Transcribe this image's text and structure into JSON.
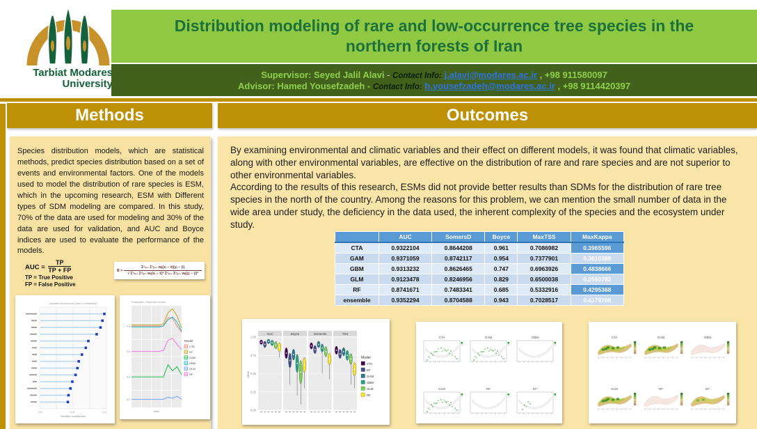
{
  "header": {
    "university": {
      "name_line1": "Tarbiat Modares",
      "name_line2": "University"
    },
    "title": "Distribution modeling of rare and low-occurrence tree species in the northern forests of Iran",
    "supervisor": {
      "name": "Supervisor: Seyed Jalil Alavi",
      "sep": "-",
      "contact_label": "Contact Info:",
      "email": "j.alavi@modares.ac.ir",
      "phone": ",  +98 911580097"
    },
    "advisor": {
      "name": "Advisor: Hamed Yousefzadeh -",
      "contact_label": "Contact Info:",
      "email": "h.yousefzadeh@modares.ac.ir",
      "phone": ",  +98 9114420397"
    }
  },
  "methods": {
    "heading": "Methods",
    "body": "Species distribution models, which are statistical methods, predict species distribution based on a set of events and environmental factors. One of the models used to model the distribution of rare species is ESM, which in the upcoming research, ESM with Different types of SDM modeling are compared. In this study, 70% of the data are used for modeling and 30% of the data are used for validation, and AUC and Boyce indices are used to evaluate the performance of the models.",
    "formulas": {
      "auc_lhs": "AUC =",
      "auc_num": "TP",
      "auc_den": "TP + FP",
      "tp_legend": "TP = True Positive",
      "fp_legend": "FP = False Positive",
      "boyce_lhs": "B =",
      "boyce_num": "Σⁿᵢ₌₁ Σⁿⱼ₌₁ wᵢⱼ(xᵢ − x̄)(yⱼ − ȳ)",
      "boyce_den": "√ Σⁿᵢ₌₁ Σⁿⱼ₌₁ wᵢⱼ(xᵢ − x̄)² Σⁿᵢ₌₁ Σⁿⱼ₌₁ wᵢⱼ(yⱼ − ȳ)²"
    }
  },
  "outcomes": {
    "heading": "Outcomes",
    "p1": "By examining environmental and climatic variables and their effect on different models, it was found that climatic variables, along with other environmental variables, are effective on the distribution of rare and rare species and are not superior to other environmental variables.",
    "p2": "According to the results of this research, ESMs did not provide better results than SDMs for the distribution of rare tree species in the north of the country. Among the reasons for this problem, we can mention the small number of data in the wide area under study, the deficiency in the data used, the inherent complexity of the species and the ecosystem under study.",
    "table": {
      "columns": [
        "",
        "AUC",
        "SomersD",
        "Boyce",
        "MaxTSS",
        "MaxKappa"
      ],
      "rows": [
        {
          "model": "CTA",
          "values": [
            "0.9322104",
            "0.8644208",
            "0.961",
            "0.7086982",
            "0.3965596"
          ]
        },
        {
          "model": "GAM",
          "values": [
            "0.9371059",
            "0.8742117",
            "0.954",
            "0.7377901",
            "0.3610389"
          ]
        },
        {
          "model": "GBM",
          "values": [
            "0.9313232",
            "0.8626465",
            "0.747",
            "0.6963926",
            "0.4838666"
          ]
        },
        {
          "model": "GLM",
          "values": [
            "0.9123478",
            "0.8246956",
            "0.829",
            "0.6500038",
            "0.2560782"
          ]
        },
        {
          "model": "RF",
          "values": [
            "0.8741671",
            "0.7483341",
            "0.685",
            "0.5332916",
            "0.4295368"
          ]
        },
        {
          "model": "ensemble",
          "values": [
            "0.9352294",
            "0.8704588",
            "0.943",
            "0.7028517",
            "0.4179706"
          ]
        }
      ]
    }
  },
  "chart_data": [
    {
      "id": "variable-importance",
      "type": "scatter",
      "title": "Variable importance  (rank of variables)",
      "xlabel": "Variable contribution",
      "xlim": [
        0,
        1
      ],
      "xticks": [
        "0.0",
        "0.5",
        "1.0"
      ],
      "values": [
        1.0,
        0.97,
        0.94,
        0.88,
        0.75,
        0.71,
        0.65,
        0.6,
        0.58,
        0.55,
        0.5,
        0.47,
        0.44,
        0.43
      ],
      "label_widths": [
        16,
        8,
        8,
        10,
        9,
        7,
        7,
        7,
        8,
        11,
        6,
        14,
        10,
        9
      ],
      "marker_color": "#1F3BC0",
      "stem_color": "#BDD7EE"
    },
    {
      "id": "model-curves",
      "type": "line",
      "title": "Evaluation / response curves",
      "legend_title": "Model",
      "grid": true,
      "series": [
        {
          "name": "CTA",
          "color": "#F8766D",
          "values": [
            0.8,
            0.8,
            0.8,
            0.8,
            0.8,
            0.8,
            0.8,
            0.8,
            0.88,
            0.88,
            0.8,
            0.74
          ]
        },
        {
          "name": "EF",
          "color": "#B79F00",
          "values": [
            0.81,
            0.81,
            0.81,
            0.81,
            0.81,
            0.81,
            0.81,
            0.82,
            0.93,
            0.97,
            0.9,
            0.78
          ]
        },
        {
          "name": "GAM",
          "color": "#00BA38",
          "values": [
            0.3,
            0.3,
            0.3,
            0.3,
            0.3,
            0.3,
            0.3,
            0.3,
            0.42,
            0.36,
            0.4,
            0.32
          ]
        },
        {
          "name": "GBM",
          "color": "#00BFC4",
          "values": [
            0.79,
            0.79,
            0.79,
            0.79,
            0.79,
            0.79,
            0.79,
            0.8,
            0.86,
            0.89,
            0.84,
            0.75
          ]
        },
        {
          "name": "GLM",
          "color": "#619CFF",
          "values": [
            0.08,
            0.08,
            0.08,
            0.08,
            0.08,
            0.08,
            0.08,
            0.08,
            0.1,
            0.09,
            0.11,
            0.08
          ]
        },
        {
          "name": "RF",
          "color": "#F564E3",
          "values": [
            0.55,
            0.55,
            0.55,
            0.55,
            0.55,
            0.55,
            0.55,
            0.56,
            0.66,
            0.68,
            0.62,
            0.57
          ]
        }
      ]
    },
    {
      "id": "violin-metrics",
      "type": "violin",
      "ylabel": "value",
      "ylim": [
        0,
        1
      ],
      "yticks": [
        "1.00",
        "0.75",
        "0.50",
        "0.25",
        "0.00"
      ],
      "legend_title": "Model",
      "models": [
        "CTA",
        "EF",
        "GAM",
        "GBM",
        "GLM",
        "RF"
      ],
      "colors": [
        "#440154",
        "#3F4E8C",
        "#2A788E",
        "#21A585",
        "#7AD151",
        "#FDE725"
      ],
      "facets": [
        {
          "label": "AUC",
          "centers": [
            0.93,
            0.9,
            0.94,
            0.92,
            0.89,
            0.86
          ],
          "spreads": [
            0.05,
            0.07,
            0.05,
            0.06,
            0.08,
            0.1
          ],
          "tails": [
            0,
            0,
            0,
            0,
            0,
            0.72
          ]
        },
        {
          "label": "Boyce",
          "centers": [
            0.78,
            0.68,
            0.76,
            0.64,
            0.52,
            0.62
          ],
          "spreads": [
            0.12,
            0.16,
            0.12,
            0.2,
            0.26,
            0.16
          ],
          "tails": [
            0,
            0.35,
            0,
            0.2,
            0.08,
            0.3
          ]
        },
        {
          "label": "SomersD",
          "centers": [
            0.88,
            0.83,
            0.9,
            0.85,
            0.8,
            0.7
          ],
          "spreads": [
            0.07,
            0.09,
            0.07,
            0.09,
            0.11,
            0.13
          ],
          "tails": [
            0,
            0,
            0,
            0.5,
            0,
            0.42
          ]
        },
        {
          "label": "TSS",
          "centers": [
            0.82,
            0.77,
            0.8,
            0.75,
            0.7,
            0.56
          ],
          "spreads": [
            0.09,
            0.1,
            0.09,
            0.11,
            0.12,
            0.15
          ],
          "tails": [
            0,
            0,
            0,
            0,
            0.35,
            0.3
          ]
        }
      ]
    },
    {
      "id": "response-grid",
      "type": "scatter",
      "titles": [
        "CTA",
        "GAM",
        "GBM",
        "GLM",
        "RF",
        "EF"
      ],
      "point_color": "#2DA02D",
      "intensities": [
        0.9,
        1.0,
        0.05,
        1.0,
        0.05,
        0.2
      ]
    },
    {
      "id": "map-grid",
      "type": "heatmap",
      "titles": [
        "CTA",
        "GAM",
        "GBM",
        "GLM",
        "RF",
        "EF"
      ],
      "styles": [
        "green",
        "green",
        "pale",
        "green",
        "pale",
        "warm"
      ],
      "colorbar": [
        "#2E7D32",
        "#6FAF35",
        "#AEC440",
        "#DCD48A",
        "#D9B877",
        "#C69366"
      ]
    }
  ]
}
